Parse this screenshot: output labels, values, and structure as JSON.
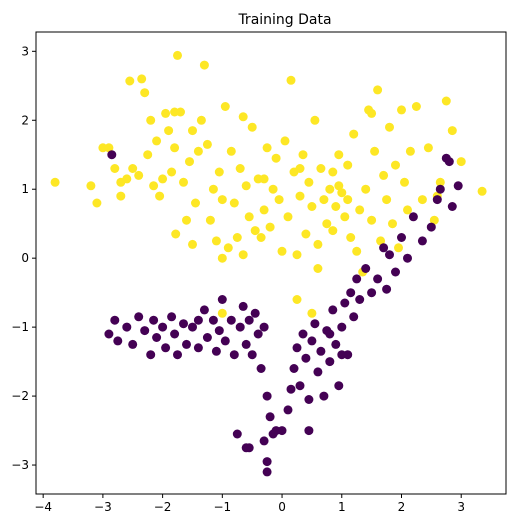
{
  "chart_data": {
    "type": "scatter",
    "title": "Training Data",
    "xlabel": "",
    "ylabel": "",
    "xlim": [
      -4.12,
      3.75
    ],
    "ylim": [
      -3.42,
      3.28
    ],
    "xticks": [
      -4,
      -3,
      -2,
      -1,
      0,
      1,
      2,
      3
    ],
    "yticks": [
      -3,
      -2,
      -1,
      0,
      1,
      2,
      3
    ],
    "grid": false,
    "legend": "none",
    "series": [
      {
        "color": "#fde725",
        "points": [
          [
            -3.8,
            1.1
          ],
          [
            -3.2,
            1.05
          ],
          [
            -3.1,
            0.8
          ],
          [
            -3.0,
            1.6
          ],
          [
            -2.9,
            1.6
          ],
          [
            -2.8,
            1.3
          ],
          [
            -2.7,
            1.1
          ],
          [
            -2.6,
            1.15
          ],
          [
            -2.55,
            2.57
          ],
          [
            -2.5,
            1.3
          ],
          [
            -2.4,
            1.2
          ],
          [
            -2.35,
            2.6
          ],
          [
            -2.3,
            2.4
          ],
          [
            -2.25,
            1.5
          ],
          [
            -2.2,
            2.0
          ],
          [
            -2.15,
            1.05
          ],
          [
            -2.1,
            1.7
          ],
          [
            -2.05,
            0.9
          ],
          [
            -2.0,
            1.15
          ],
          [
            -1.95,
            2.1
          ],
          [
            -1.9,
            1.85
          ],
          [
            -1.85,
            1.25
          ],
          [
            -1.8,
            2.12
          ],
          [
            -1.78,
            0.35
          ],
          [
            -1.75,
            2.94
          ],
          [
            -1.7,
            2.12
          ],
          [
            -1.65,
            1.1
          ],
          [
            -1.6,
            0.55
          ],
          [
            -1.55,
            1.4
          ],
          [
            -1.5,
            1.85
          ],
          [
            -1.45,
            0.8
          ],
          [
            -1.4,
            1.55
          ],
          [
            -1.35,
            2.0
          ],
          [
            -1.3,
            2.8
          ],
          [
            -1.25,
            1.65
          ],
          [
            -1.2,
            0.55
          ],
          [
            -1.15,
            1.0
          ],
          [
            -1.1,
            0.25
          ],
          [
            -1.05,
            1.25
          ],
          [
            -1.0,
            0.85
          ],
          [
            -0.95,
            2.2
          ],
          [
            -0.9,
            0.15
          ],
          [
            -0.85,
            1.55
          ],
          [
            -0.8,
            0.8
          ],
          [
            -0.75,
            0.3
          ],
          [
            -0.7,
            1.3
          ],
          [
            -0.65,
            0.05
          ],
          [
            -0.6,
            1.05
          ],
          [
            -0.55,
            0.6
          ],
          [
            -0.5,
            1.9
          ],
          [
            -0.45,
            0.4
          ],
          [
            -0.4,
            1.15
          ],
          [
            -0.35,
            0.3
          ],
          [
            -0.3,
            0.7
          ],
          [
            -0.25,
            1.6
          ],
          [
            -0.2,
            0.45
          ],
          [
            -0.15,
            1.0
          ],
          [
            -0.1,
            1.45
          ],
          [
            -0.05,
            0.85
          ],
          [
            0.0,
            0.1
          ],
          [
            0.05,
            1.7
          ],
          [
            0.1,
            0.6
          ],
          [
            0.15,
            2.58
          ],
          [
            0.2,
            1.25
          ],
          [
            0.25,
            0.05
          ],
          [
            0.3,
            0.9
          ],
          [
            0.35,
            1.5
          ],
          [
            0.4,
            0.35
          ],
          [
            0.45,
            1.1
          ],
          [
            0.5,
            0.75
          ],
          [
            0.55,
            2.0
          ],
          [
            0.6,
            0.2
          ],
          [
            0.65,
            1.3
          ],
          [
            0.7,
            0.85
          ],
          [
            0.75,
            0.5
          ],
          [
            0.8,
            1.0
          ],
          [
            0.85,
            1.25
          ],
          [
            0.9,
            0.75
          ],
          [
            0.95,
            1.05
          ],
          [
            1.0,
            0.95
          ],
          [
            1.05,
            0.6
          ],
          [
            1.1,
            1.35
          ],
          [
            1.15,
            0.3
          ],
          [
            1.2,
            1.8
          ],
          [
            1.25,
            0.1
          ],
          [
            1.3,
            0.7
          ],
          [
            1.35,
            -0.2
          ],
          [
            1.4,
            1.0
          ],
          [
            1.45,
            2.15
          ],
          [
            1.5,
            0.55
          ],
          [
            1.55,
            1.55
          ],
          [
            1.6,
            2.44
          ],
          [
            1.65,
            0.25
          ],
          [
            1.7,
            1.2
          ],
          [
            1.75,
            0.85
          ],
          [
            1.8,
            1.9
          ],
          [
            1.85,
            0.5
          ],
          [
            1.9,
            1.35
          ],
          [
            1.95,
            0.15
          ],
          [
            2.0,
            2.15
          ],
          [
            2.05,
            1.1
          ],
          [
            2.1,
            0.7
          ],
          [
            2.15,
            1.55
          ],
          [
            2.25,
            2.2
          ],
          [
            2.35,
            0.85
          ],
          [
            2.45,
            1.6
          ],
          [
            2.55,
            0.55
          ],
          [
            2.65,
            1.1
          ],
          [
            2.75,
            2.28
          ],
          [
            2.85,
            1.85
          ],
          [
            3.0,
            1.4
          ],
          [
            3.35,
            0.97
          ],
          [
            -1.0,
            0.0
          ],
          [
            -1.5,
            0.2
          ],
          [
            0.6,
            -0.15
          ],
          [
            0.25,
            -0.6
          ],
          [
            0.5,
            -0.8
          ],
          [
            -1.0,
            -0.8
          ],
          [
            -0.65,
            2.05
          ],
          [
            0.95,
            1.5
          ],
          [
            1.1,
            0.85
          ],
          [
            0.85,
            0.4
          ],
          [
            0.3,
            1.3
          ],
          [
            -0.3,
            1.15
          ],
          [
            -1.8,
            1.6
          ],
          [
            -2.7,
            0.9
          ],
          [
            1.5,
            2.1
          ],
          [
            2.6,
            0.9
          ]
        ]
      },
      {
        "color": "#440154",
        "points": [
          [
            -2.9,
            -1.1
          ],
          [
            -2.8,
            -0.9
          ],
          [
            -2.75,
            -1.2
          ],
          [
            -2.85,
            1.5
          ],
          [
            -2.6,
            -1.0
          ],
          [
            -2.5,
            -1.25
          ],
          [
            -2.4,
            -0.85
          ],
          [
            -2.3,
            -1.05
          ],
          [
            -2.2,
            -1.4
          ],
          [
            -2.15,
            -0.9
          ],
          [
            -2.1,
            -1.15
          ],
          [
            -2.0,
            -1.0
          ],
          [
            -1.95,
            -1.3
          ],
          [
            -1.85,
            -0.85
          ],
          [
            -1.8,
            -1.1
          ],
          [
            -1.75,
            -1.4
          ],
          [
            -1.65,
            -0.95
          ],
          [
            -1.6,
            -1.25
          ],
          [
            -1.5,
            -1.0
          ],
          [
            -1.4,
            -1.3
          ],
          [
            -1.3,
            -0.75
          ],
          [
            -1.25,
            -1.15
          ],
          [
            -1.15,
            -0.9
          ],
          [
            -1.1,
            -1.35
          ],
          [
            -1.05,
            -1.05
          ],
          [
            -1.0,
            -0.6
          ],
          [
            -0.95,
            -1.2
          ],
          [
            -0.85,
            -0.9
          ],
          [
            -0.8,
            -1.4
          ],
          [
            -0.7,
            -1.0
          ],
          [
            -0.65,
            -0.7
          ],
          [
            -0.6,
            -1.25
          ],
          [
            -0.55,
            -0.9
          ],
          [
            -0.5,
            -1.4
          ],
          [
            -0.45,
            -0.8
          ],
          [
            -0.4,
            -1.1
          ],
          [
            -0.35,
            -1.6
          ],
          [
            -0.3,
            -1.0
          ],
          [
            -0.25,
            -2.0
          ],
          [
            -0.2,
            -2.3
          ],
          [
            -0.25,
            -2.95
          ],
          [
            -0.25,
            -3.1
          ],
          [
            -0.55,
            -2.75
          ],
          [
            -0.6,
            -2.75
          ],
          [
            -0.75,
            -2.55
          ],
          [
            -0.1,
            -2.5
          ],
          [
            0.0,
            -2.5
          ],
          [
            0.1,
            -2.2
          ],
          [
            0.15,
            -1.9
          ],
          [
            0.2,
            -1.6
          ],
          [
            0.25,
            -1.3
          ],
          [
            0.3,
            -1.85
          ],
          [
            0.35,
            -1.1
          ],
          [
            0.4,
            -1.45
          ],
          [
            0.45,
            -2.05
          ],
          [
            0.5,
            -1.2
          ],
          [
            0.55,
            -0.95
          ],
          [
            0.6,
            -1.65
          ],
          [
            0.65,
            -1.35
          ],
          [
            0.7,
            -2.0
          ],
          [
            0.75,
            -1.05
          ],
          [
            0.8,
            -1.5
          ],
          [
            0.85,
            -0.75
          ],
          [
            0.9,
            -1.25
          ],
          [
            0.95,
            -1.85
          ],
          [
            1.0,
            -1.0
          ],
          [
            1.05,
            -0.65
          ],
          [
            1.1,
            -1.4
          ],
          [
            1.15,
            -0.5
          ],
          [
            1.2,
            -0.85
          ],
          [
            1.25,
            -0.3
          ],
          [
            1.3,
            -0.6
          ],
          [
            1.4,
            -0.15
          ],
          [
            1.5,
            -0.5
          ],
          [
            1.6,
            -0.3
          ],
          [
            1.7,
            0.15
          ],
          [
            1.8,
            0.05
          ],
          [
            1.9,
            -0.2
          ],
          [
            2.0,
            0.3
          ],
          [
            2.1,
            0.0
          ],
          [
            2.2,
            0.6
          ],
          [
            2.35,
            0.25
          ],
          [
            2.5,
            0.45
          ],
          [
            2.75,
            1.45
          ],
          [
            2.8,
            1.4
          ],
          [
            2.85,
            0.75
          ],
          [
            2.95,
            1.05
          ],
          [
            2.6,
            0.85
          ],
          [
            2.65,
            1.0
          ],
          [
            1.75,
            -0.45
          ],
          [
            -0.15,
            -2.55
          ],
          [
            -0.3,
            -2.65
          ],
          [
            0.45,
            -2.5
          ],
          [
            1.0,
            -1.4
          ],
          [
            0.8,
            -1.1
          ],
          [
            -1.4,
            -0.9
          ]
        ]
      }
    ]
  }
}
